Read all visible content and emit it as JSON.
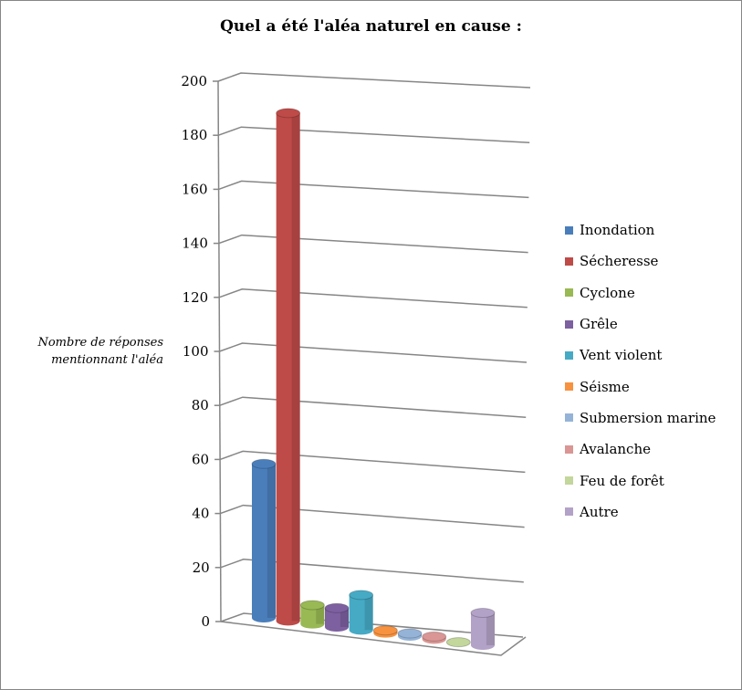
{
  "chart_data": {
    "type": "bar",
    "title": "Quel a été l'aléa naturel en cause :",
    "ylabel": "Nombre de réponses mentionnant l'aléa",
    "xlabel": "",
    "ylim": [
      0,
      200
    ],
    "yticks": [
      0,
      20,
      40,
      60,
      80,
      100,
      120,
      140,
      160,
      180,
      200
    ],
    "grid": true,
    "legend_position": "right",
    "categories": [
      "Inondation",
      "Sécheresse",
      "Cyclone",
      "Grêle",
      "Vent violent",
      "Séisme",
      "Submersion marine",
      "Avalanche",
      "Feu de forêt",
      "Autre"
    ],
    "values": [
      57,
      188,
      7,
      7,
      13,
      1,
      1,
      1,
      0,
      12
    ],
    "colors": [
      "#4a7ebb",
      "#be4b48",
      "#98b954",
      "#7d60a0",
      "#46aac5",
      "#f69240",
      "#95b3d7",
      "#d99694",
      "#c3d69b",
      "#b3a2c7"
    ]
  }
}
